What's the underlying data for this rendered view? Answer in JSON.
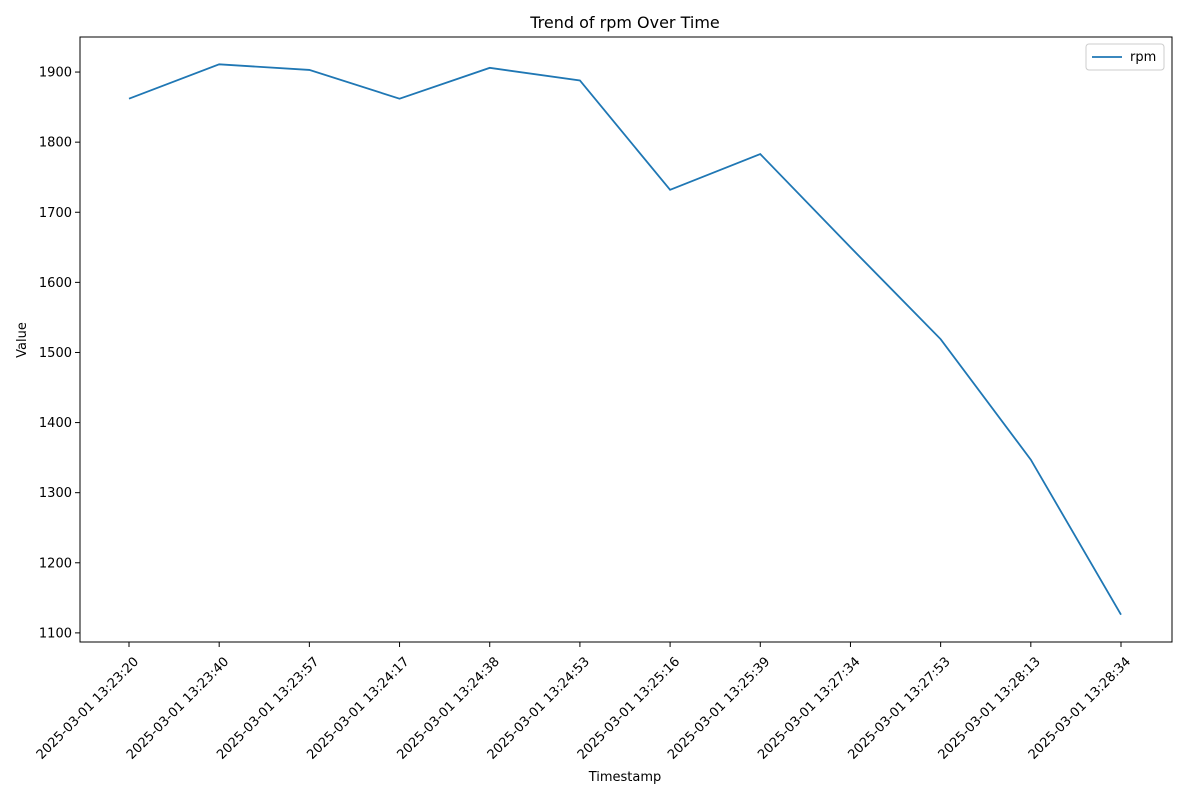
{
  "chart_data": {
    "type": "line",
    "title": "Trend of rpm Over Time",
    "xlabel": "Timestamp",
    "ylabel": "Value",
    "categories": [
      "2025-03-01 13:23:20",
      "2025-03-01 13:23:40",
      "2025-03-01 13:23:57",
      "2025-03-01 13:24:17",
      "2025-03-01 13:24:38",
      "2025-03-01 13:24:53",
      "2025-03-01 13:25:16",
      "2025-03-01 13:25:39",
      "2025-03-01 13:27:34",
      "2025-03-01 13:27:53",
      "2025-03-01 13:28:13",
      "2025-03-01 13:28:34"
    ],
    "series": [
      {
        "name": "rpm",
        "color": "#1f77b4",
        "values": [
          1862,
          1911,
          1903,
          1862,
          1906,
          1888,
          1732,
          1783,
          1650,
          1519,
          1347,
          1126
        ]
      }
    ],
    "yticks": [
      1100,
      1200,
      1300,
      1400,
      1500,
      1600,
      1700,
      1800,
      1900
    ],
    "ylim": [
      1087,
      1950
    ],
    "grid": false,
    "legend_position": "top-right"
  }
}
